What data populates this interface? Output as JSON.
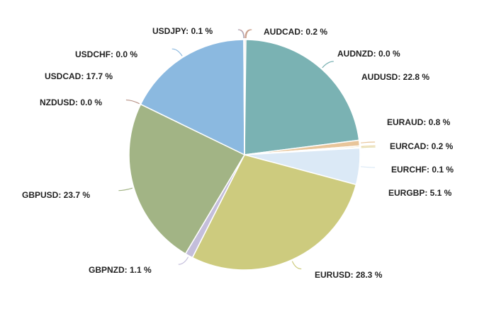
{
  "chart_data": {
    "type": "pie",
    "unit": "%",
    "slices": [
      {
        "label": "AUDCAD",
        "value": 0.2,
        "color": "#c8a294"
      },
      {
        "label": "AUDNZD",
        "value": 0.0,
        "color": "#c99c84"
      },
      {
        "label": "AUDUSD",
        "value": 22.8,
        "color": "#7ab2b3"
      },
      {
        "label": "EURAUD",
        "value": 0.8,
        "color": "#e8c59a"
      },
      {
        "label": "EURCAD",
        "value": 0.2,
        "color": "#e8d4a0"
      },
      {
        "label": "EURCHF",
        "value": 0.1,
        "color": "#e4dfb2"
      },
      {
        "label": "EURGBP",
        "value": 5.1,
        "color": "#dbe9f6"
      },
      {
        "label": "EURUSD",
        "value": 28.3,
        "color": "#cdcb7e"
      },
      {
        "label": "GBPNZD",
        "value": 1.1,
        "color": "#c4bedb"
      },
      {
        "label": "GBPUSD",
        "value": 23.7,
        "color": "#a2b485"
      },
      {
        "label": "NZDUSD",
        "value": 0.0,
        "color": "#b89286"
      },
      {
        "label": "USDCAD",
        "value": 17.7,
        "color": "#8bb9e0"
      },
      {
        "label": "USDCHF",
        "value": 0.0,
        "color": "#7fb4d6"
      },
      {
        "label": "USDJPY",
        "value": 0.1,
        "color": "#c9a0a2"
      }
    ],
    "labels": [
      "AUDCAD: 0.2 %",
      "AUDNZD: 0.0 %",
      "AUDUSD: 22.8 %",
      "EURAUD: 0.8 %",
      "EURCAD: 0.2 %",
      "EURCHF: 0.1 %",
      "EURGBP: 5.1 %",
      "EURUSD: 28.3 %",
      "GBPNZD: 1.1 %",
      "GBPUSD: 23.7 %",
      "NZDUSD: 0.0 %",
      "USDCAD: 17.7 %",
      "USDCHF: 0.0 %",
      "USDJPY: 0.1 %"
    ]
  }
}
